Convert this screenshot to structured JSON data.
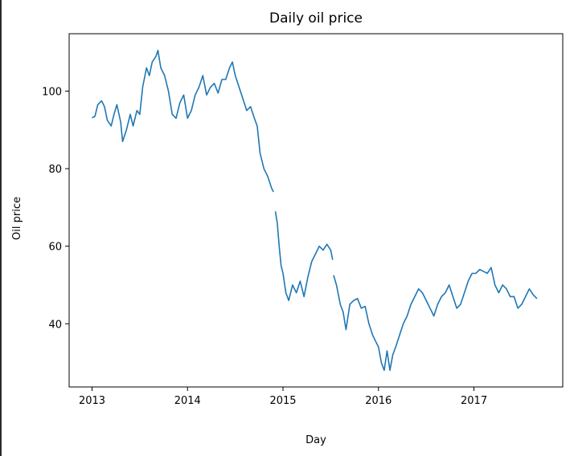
{
  "chart_data": {
    "type": "line",
    "title": "Daily oil price",
    "xlabel": "Day",
    "ylabel": "Oil price",
    "xlim": [
      2012.76,
      2017.93
    ],
    "ylim": [
      23.7,
      114.8
    ],
    "xticks": [
      2013,
      2014,
      2015,
      2016,
      2017
    ],
    "xtick_labels": [
      "2013",
      "2014",
      "2015",
      "2016",
      "2017"
    ],
    "yticks": [
      40,
      60,
      80,
      100
    ],
    "ytick_labels": [
      "40",
      "60",
      "80",
      "100"
    ],
    "grid": false,
    "line_color": "#1f77b4",
    "series": [
      {
        "name": "Oil price",
        "segments": [
          [
            [
              2013.0,
              93.1
            ],
            [
              2013.03,
              93.5
            ],
            [
              2013.06,
              96.5
            ],
            [
              2013.1,
              97.5
            ],
            [
              2013.13,
              96.0
            ],
            [
              2013.16,
              92.5
            ],
            [
              2013.2,
              91.0
            ],
            [
              2013.23,
              94.0
            ],
            [
              2013.26,
              96.5
            ],
            [
              2013.3,
              92.0
            ],
            [
              2013.32,
              87.0
            ],
            [
              2013.36,
              90.0
            ],
            [
              2013.4,
              94.0
            ],
            [
              2013.43,
              91.0
            ],
            [
              2013.47,
              95.0
            ],
            [
              2013.5,
              94.0
            ],
            [
              2013.53,
              101.0
            ],
            [
              2013.57,
              106.0
            ],
            [
              2013.6,
              104.0
            ],
            [
              2013.63,
              107.5
            ],
            [
              2013.67,
              109.0
            ],
            [
              2013.69,
              110.5
            ],
            [
              2013.72,
              106.0
            ],
            [
              2013.76,
              104.0
            ],
            [
              2013.8,
              100.0
            ],
            [
              2013.84,
              94.0
            ],
            [
              2013.88,
              93.0
            ],
            [
              2013.92,
              97.0
            ],
            [
              2013.96,
              99.0
            ],
            [
              2014.0,
              93.0
            ],
            [
              2014.04,
              95.0
            ],
            [
              2014.08,
              99.0
            ],
            [
              2014.12,
              101.0
            ],
            [
              2014.16,
              104.0
            ],
            [
              2014.2,
              99.0
            ],
            [
              2014.24,
              101.0
            ],
            [
              2014.28,
              102.0
            ],
            [
              2014.32,
              99.5
            ],
            [
              2014.36,
              103.0
            ],
            [
              2014.4,
              103.0
            ],
            [
              2014.44,
              106.0
            ],
            [
              2014.47,
              107.5
            ],
            [
              2014.5,
              104.0
            ],
            [
              2014.54,
              101.0
            ],
            [
              2014.58,
              98.0
            ],
            [
              2014.62,
              95.0
            ],
            [
              2014.66,
              96.0
            ],
            [
              2014.7,
              93.0
            ],
            [
              2014.73,
              91.0
            ],
            [
              2014.76,
              84.0
            ],
            [
              2014.8,
              80.0
            ],
            [
              2014.84,
              78.0
            ],
            [
              2014.88,
              75.0
            ],
            [
              2014.9,
              74.0
            ]
          ],
          [
            [
              2014.92,
              69.0
            ],
            [
              2014.94,
              66.0
            ],
            [
              2014.96,
              60.0
            ],
            [
              2014.98,
              55.0
            ],
            [
              2015.0,
              53.0
            ],
            [
              2015.03,
              48.0
            ],
            [
              2015.06,
              46.0
            ],
            [
              2015.1,
              50.0
            ],
            [
              2015.14,
              48.0
            ],
            [
              2015.18,
              51.0
            ],
            [
              2015.22,
              47.0
            ],
            [
              2015.26,
              52.0
            ],
            [
              2015.3,
              56.0
            ],
            [
              2015.34,
              58.0
            ],
            [
              2015.38,
              60.0
            ],
            [
              2015.42,
              59.0
            ],
            [
              2015.46,
              60.5
            ],
            [
              2015.5,
              59.0
            ],
            [
              2015.52,
              56.5
            ]
          ],
          [
            [
              2015.53,
              52.5
            ],
            [
              2015.56,
              50.0
            ],
            [
              2015.6,
              45.0
            ],
            [
              2015.63,
              43.0
            ],
            [
              2015.66,
              38.5
            ],
            [
              2015.7,
              45.0
            ],
            [
              2015.74,
              46.0
            ],
            [
              2015.78,
              46.5
            ],
            [
              2015.82,
              44.0
            ],
            [
              2015.86,
              44.5
            ],
            [
              2015.9,
              40.0
            ],
            [
              2015.94,
              37.0
            ],
            [
              2015.98,
              35.0
            ],
            [
              2016.0,
              34.0
            ],
            [
              2016.03,
              30.0
            ],
            [
              2016.06,
              28.0
            ],
            [
              2016.09,
              33.0
            ],
            [
              2016.12,
              28.0
            ],
            [
              2016.15,
              32.0
            ],
            [
              2016.18,
              34.0
            ],
            [
              2016.22,
              37.0
            ],
            [
              2016.26,
              40.0
            ],
            [
              2016.3,
              42.0
            ],
            [
              2016.34,
              45.0
            ],
            [
              2016.38,
              47.0
            ],
            [
              2016.42,
              49.0
            ],
            [
              2016.46,
              48.0
            ],
            [
              2016.5,
              46.0
            ],
            [
              2016.54,
              44.0
            ],
            [
              2016.58,
              42.0
            ],
            [
              2016.62,
              45.0
            ],
            [
              2016.66,
              47.0
            ],
            [
              2016.7,
              48.0
            ],
            [
              2016.74,
              50.0
            ],
            [
              2016.78,
              47.0
            ],
            [
              2016.82,
              44.0
            ],
            [
              2016.86,
              45.0
            ],
            [
              2016.9,
              48.0
            ],
            [
              2016.94,
              51.0
            ],
            [
              2016.98,
              53.0
            ],
            [
              2017.02,
              53.0
            ],
            [
              2017.06,
              54.0
            ],
            [
              2017.1,
              53.5
            ],
            [
              2017.14,
              53.0
            ],
            [
              2017.18,
              54.5
            ],
            [
              2017.22,
              50.0
            ],
            [
              2017.26,
              48.0
            ],
            [
              2017.3,
              50.0
            ],
            [
              2017.34,
              49.0
            ],
            [
              2017.38,
              47.0
            ],
            [
              2017.42,
              47.0
            ],
            [
              2017.46,
              44.0
            ],
            [
              2017.5,
              45.0
            ],
            [
              2017.54,
              47.0
            ],
            [
              2017.58,
              49.0
            ],
            [
              2017.62,
              47.5
            ],
            [
              2017.66,
              46.5
            ]
          ]
        ]
      }
    ]
  }
}
